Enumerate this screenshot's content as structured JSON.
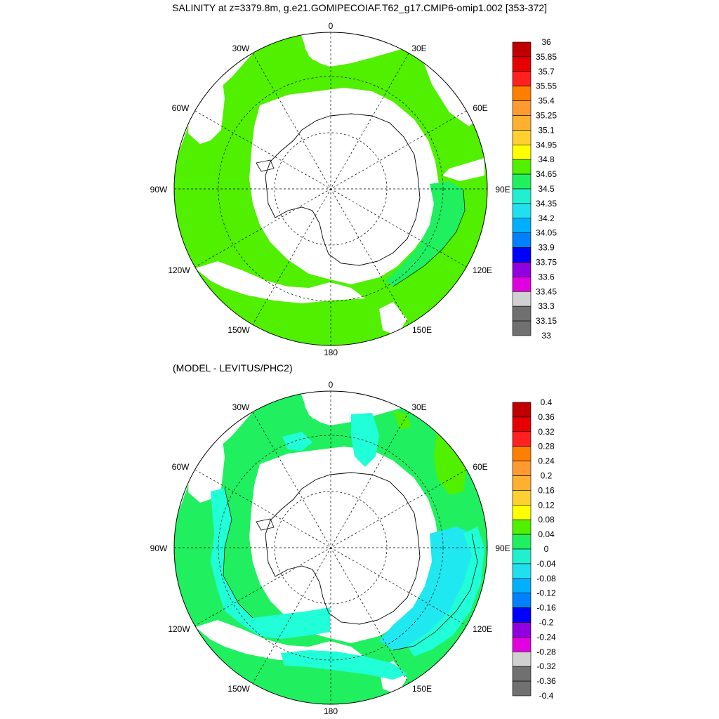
{
  "title": "SALINITY at z=3379.8m, g.e21.GOMIPECOIAF.T62_g17.CMIP6-omip1.002 [353-372]",
  "subtitle": "(MODEL - LEVITUS/PHC2)",
  "longitude_labels": {
    "lon_0": "0",
    "lon_30E": "30E",
    "lon_60E": "60E",
    "lon_90E": "90E",
    "lon_120E": "120E",
    "lon_150E": "150E",
    "lon_180": "180",
    "lon_150W": "150W",
    "lon_120W": "120W",
    "lon_90W": "90W",
    "lon_60W": "60W",
    "lon_30W": "30W"
  },
  "colorbar_top": {
    "labels": [
      "36",
      "35.85",
      "35.7",
      "35.55",
      "35.4",
      "35.25",
      "35.1",
      "34.95",
      "34.8",
      "34.65",
      "34.5",
      "34.35",
      "34.2",
      "34.05",
      "33.9",
      "33.75",
      "33.6",
      "33.45",
      "33.3",
      "33.15",
      "33"
    ]
  },
  "colorbar_bottom": {
    "labels": [
      "0.4",
      "0.36",
      "0.32",
      "0.28",
      "0.24",
      "0.2",
      "0.16",
      "0.12",
      "0.08",
      "0.04",
      "0",
      "-0.04",
      "-0.08",
      "-0.12",
      "-0.16",
      "-0.2",
      "-0.24",
      "-0.28",
      "-0.32",
      "-0.36",
      "-0.4"
    ]
  },
  "colors": {
    "palette_top_to_bottom": [
      "#c00000",
      "#e80000",
      "#ff2020",
      "#ff8000",
      "#ff9a30",
      "#ffb030",
      "#ffd030",
      "#ffff00",
      "#50f000",
      "#20f060",
      "#20f0d0",
      "#20e0f0",
      "#00b0ff",
      "#0080ff",
      "#0000ff",
      "#9000e0",
      "#e000e0",
      "#d0d0d0",
      "#707070"
    ],
    "top_map_fill": "#50f000",
    "top_map_secondary": "#20f060",
    "bottom_map_primary": "#20f060",
    "bottom_map_secondary": "#20ffd8",
    "bottom_map_tertiary": "#20e8f0",
    "bottom_map_accent": "#50f000"
  }
}
